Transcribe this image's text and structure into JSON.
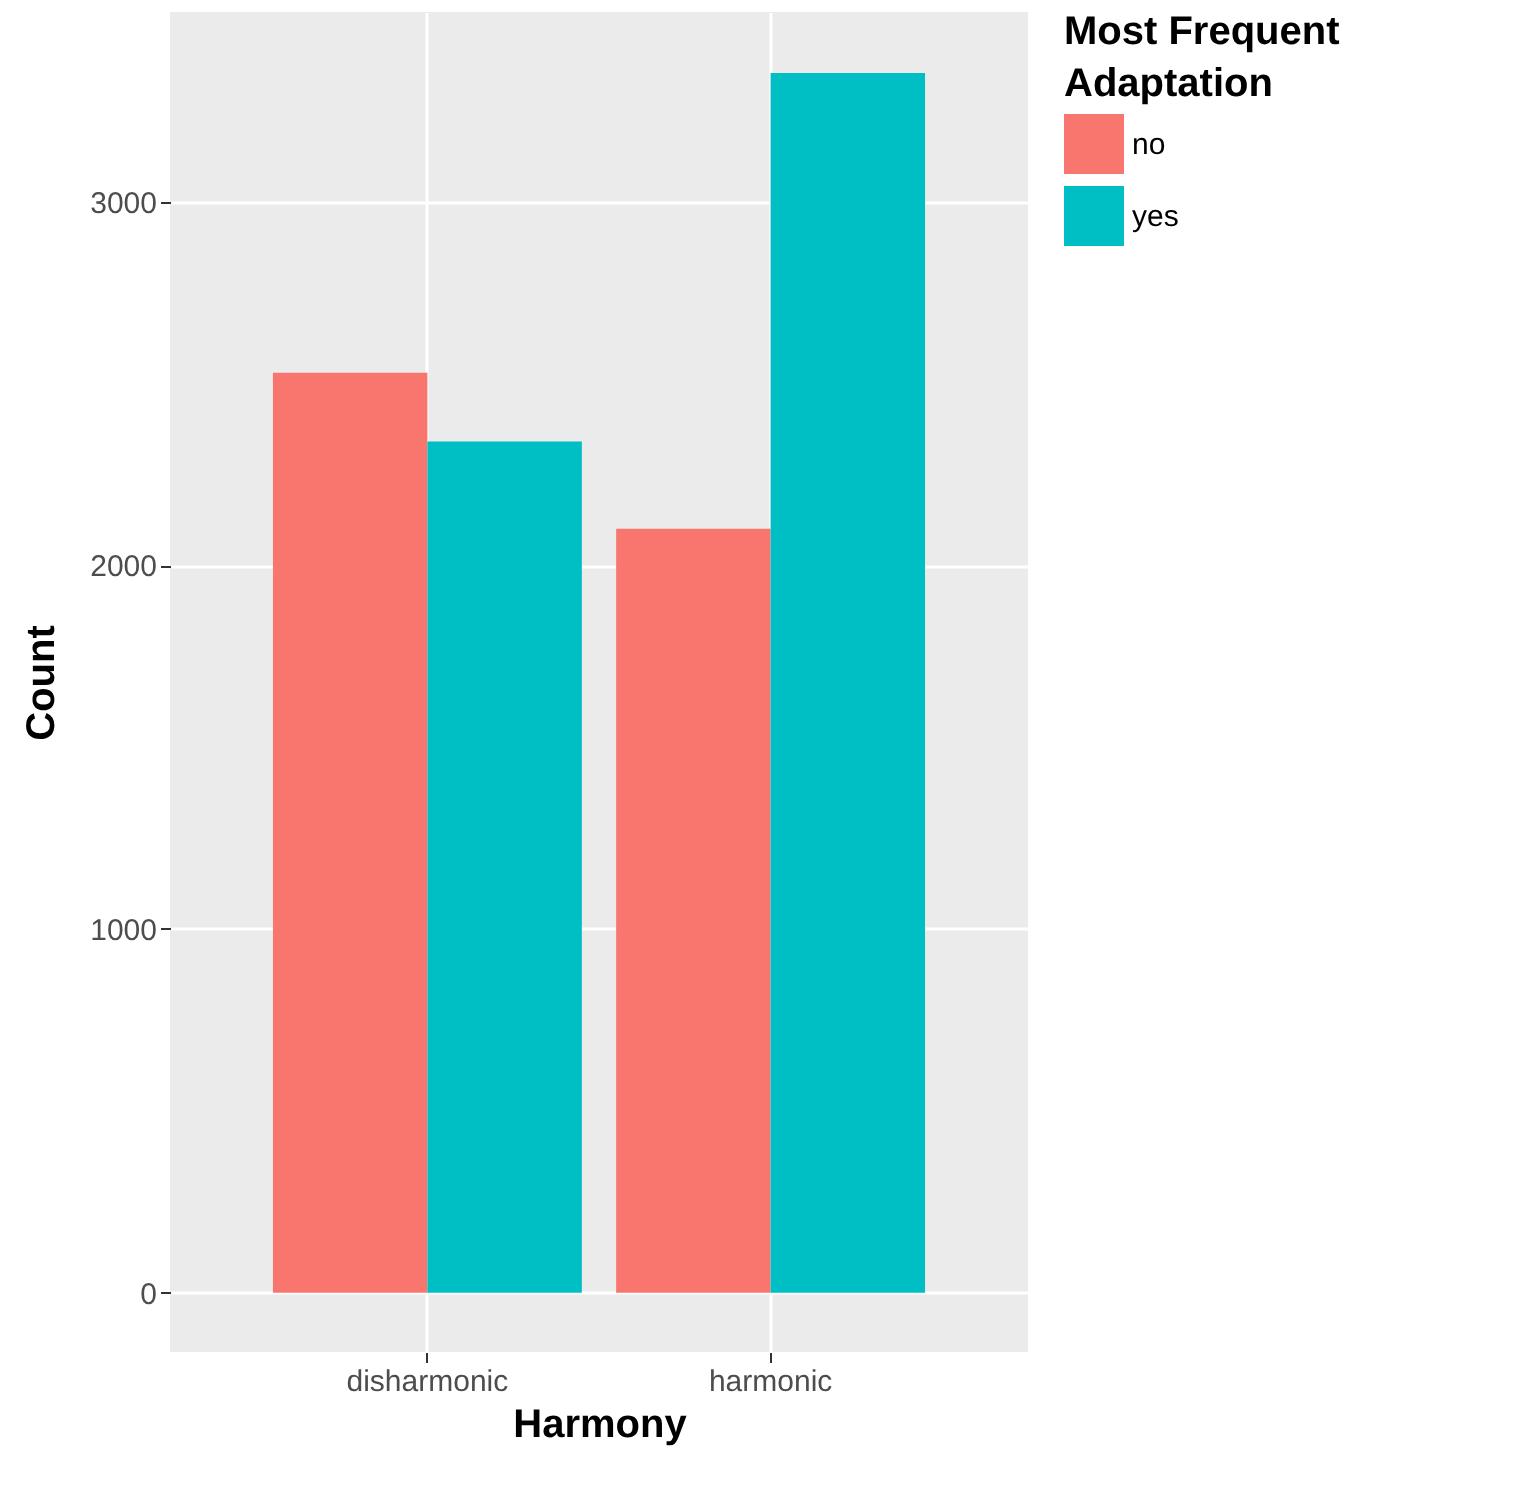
{
  "chart_data": {
    "type": "bar",
    "xlabel": "Harmony",
    "ylabel": "Count",
    "legend_title": "Most Frequent Adaptation",
    "categories": [
      "disharmonic",
      "harmonic"
    ],
    "series": [
      {
        "name": "no",
        "color": "#f8766d",
        "values": [
          2529,
          2100
        ]
      },
      {
        "name": "yes",
        "color": "#00bfc4",
        "values": [
          2340,
          3353
        ]
      }
    ],
    "ylim": [
      -163,
      3521
    ],
    "yticks": [
      0,
      1000,
      2000,
      3000
    ],
    "grid": true,
    "legend": "right"
  }
}
